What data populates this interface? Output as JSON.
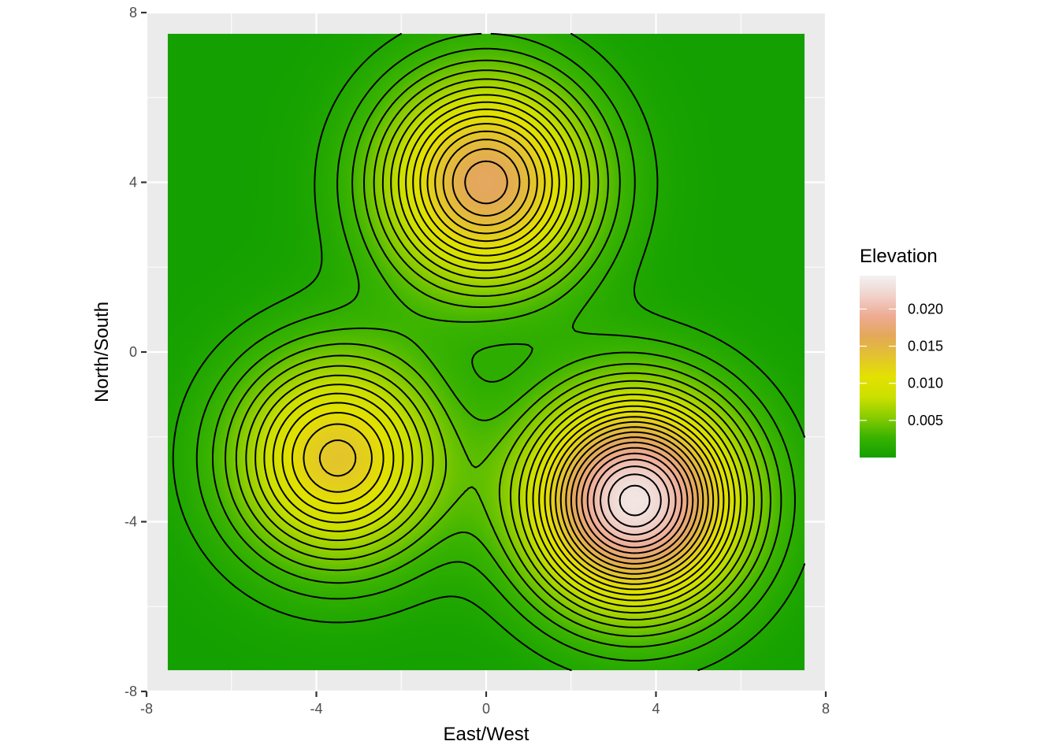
{
  "chart_data": {
    "type": "heatmap",
    "subtype": "contour",
    "xlabel": "East/West",
    "ylabel": "North/South",
    "xlim": [
      -8,
      8
    ],
    "ylim": [
      -8,
      8
    ],
    "grid": true,
    "raster_extent": {
      "x": [
        -7.5,
        7.5
      ],
      "y": [
        -7.5,
        7.5
      ]
    },
    "x_ticks": [
      -8,
      -4,
      0,
      4,
      8
    ],
    "y_ticks": [
      -8,
      -4,
      0,
      4,
      8
    ],
    "x_tick_labels": [
      "-8",
      "-4",
      "0",
      "4",
      "8"
    ],
    "y_tick_labels": [
      "-8",
      "-4",
      "0",
      "4",
      "8"
    ],
    "peaks": [
      {
        "x": 0,
        "y": 4,
        "peak_value": 0.0167
      },
      {
        "x": -3.5,
        "y": -2.5,
        "peak_value": 0.0134
      },
      {
        "x": 3.5,
        "y": -3.5,
        "peak_value": 0.0235
      }
    ],
    "contour_step": 0.001,
    "legend": {
      "title": "Elevation",
      "position": "right",
      "range": [
        0,
        0.0245
      ],
      "breaks": [
        0.005,
        0.01,
        0.015,
        0.02
      ],
      "labels": [
        "0.005",
        "0.010",
        "0.015",
        "0.020"
      ],
      "colors": [
        "#13a000",
        "#39b300",
        "#88cc00",
        "#cce000",
        "#e3e100",
        "#e3c32f",
        "#e3a859",
        "#eeab93",
        "#f0d2cb",
        "#f2f2f2"
      ]
    },
    "panel_background": "#ebebeb",
    "grid_color": "#ffffff",
    "contour_color": "#000000"
  }
}
